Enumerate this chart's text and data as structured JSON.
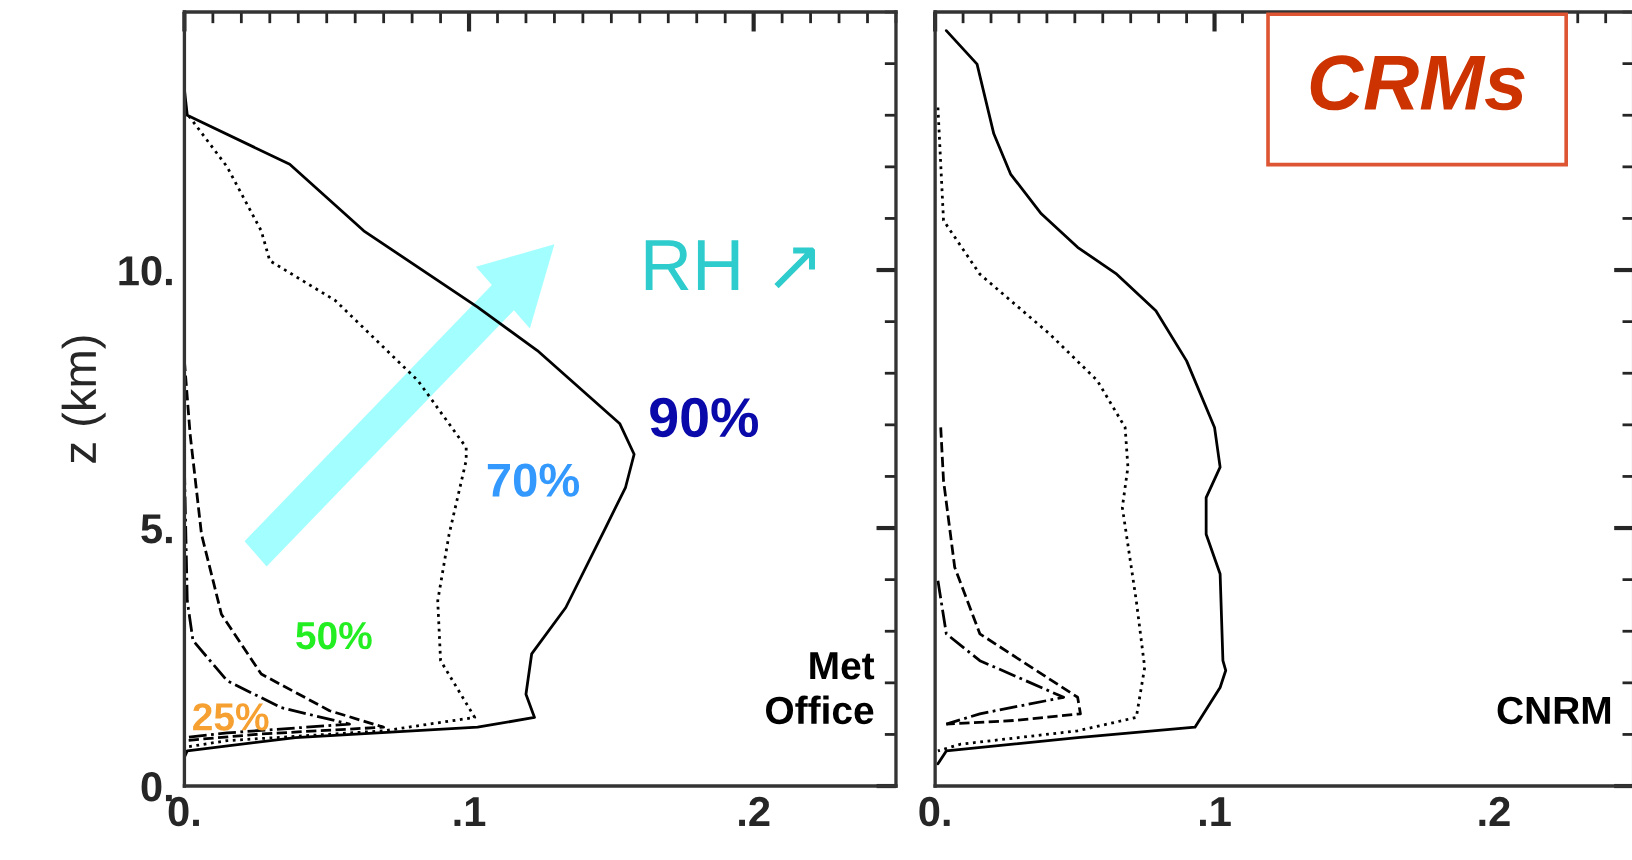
{
  "chart_data": [
    {
      "type": "line",
      "ylabel": "z (km)",
      "xlim": [
        0,
        0.25
      ],
      "ylim": [
        0,
        15
      ],
      "legend": false,
      "grid": false,
      "xticks": [
        {
          "value": 0,
          "label": "0."
        },
        {
          "value": 0.1,
          "label": ".1"
        },
        {
          "value": 0.2,
          "label": ".2"
        }
      ],
      "yticks": [
        {
          "value": 0,
          "label": "0."
        },
        {
          "value": 5,
          "label": "5."
        },
        {
          "value": 10,
          "label": "10."
        }
      ],
      "series": [
        {
          "color": "#000000",
          "line_style": "solid",
          "x": [
            0,
            0.001,
            0.037,
            0.063,
            0.103,
            0.124,
            0.153,
            0.158,
            0.155,
            0.148,
            0.134,
            0.122,
            0.12,
            0.123,
            0.103,
            0.039,
            0.001,
            0
          ],
          "values": [
            13.5,
            13.0,
            12.05,
            10.76,
            9.28,
            8.44,
            7.02,
            6.43,
            5.79,
            5.01,
            3.46,
            2.56,
            1.78,
            1.33,
            1.14,
            0.94,
            0.68,
            0.56
          ]
        },
        {
          "color": "#000000",
          "line_style": "dotted",
          "x": [
            0,
            0.015,
            0.027,
            0.03,
            0.053,
            0.082,
            0.099,
            0.099,
            0.093,
            0.089,
            0.09,
            0.102,
            0.07,
            0.015,
            0
          ],
          "values": [
            13.1,
            12.0,
            10.76,
            10.18,
            9.41,
            7.86,
            6.56,
            6.31,
            4.88,
            3.59,
            2.43,
            1.33,
            1.07,
            0.88,
            0.75
          ]
        },
        {
          "color": "#000000",
          "line_style": "dashed",
          "x": [
            0,
            0.002,
            0.006,
            0.013,
            0.027,
            0.051,
            0.07,
            0.027,
            0
          ],
          "values": [
            8.24,
            6.82,
            4.88,
            3.33,
            2.17,
            1.46,
            1.14,
            1.01,
            0.88
          ]
        },
        {
          "color": "#000000",
          "line_style": "dashdot",
          "x": [
            0,
            0.001,
            0.003,
            0.015,
            0.034,
            0.058,
            0.015,
            0
          ],
          "values": [
            6.18,
            3.59,
            2.82,
            2.04,
            1.52,
            1.2,
            1.03,
            0.94
          ]
        }
      ],
      "annotations": [
        "90%",
        "70%",
        "50%",
        "25%",
        "RH ↗",
        "Met\nOffice"
      ]
    },
    {
      "type": "line",
      "xlim": [
        0,
        0.25
      ],
      "ylim": [
        0,
        15
      ],
      "legend": false,
      "grid": false,
      "tick_labels": "x",
      "xticks": [
        {
          "value": 0,
          "label": "0."
        },
        {
          "value": 0.1,
          "label": ".1"
        },
        {
          "value": 0.2,
          "label": ".2"
        }
      ],
      "yticks": [
        {
          "value": 0,
          "label": null
        },
        {
          "value": 5,
          "label": null
        },
        {
          "value": 10,
          "label": null
        }
      ],
      "series": [
        {
          "color": "#000000",
          "line_style": "solid",
          "x": [
            0.004,
            0.015,
            0.021,
            0.027,
            0.038,
            0.051,
            0.065,
            0.079,
            0.09,
            0.1,
            0.102,
            0.097,
            0.097,
            0.102,
            0.103,
            0.104,
            0.102,
            0.093,
            0.051,
            0.004,
            0.001
          ],
          "values": [
            14.64,
            13.99,
            12.64,
            11.86,
            11.09,
            10.44,
            9.92,
            9.21,
            8.24,
            6.95,
            6.18,
            5.59,
            4.88,
            4.11,
            2.43,
            2.24,
            1.91,
            1.14,
            0.94,
            0.68,
            0.43
          ]
        },
        {
          "color": "#000000",
          "line_style": "dotted",
          "x": [
            0.001,
            0.003,
            0.016,
            0.041,
            0.058,
            0.068,
            0.069,
            0.067,
            0.072,
            0.075,
            0.072,
            0.051,
            0.009,
            0.001
          ],
          "values": [
            13.15,
            10.96,
            9.92,
            8.76,
            7.86,
            6.95,
            6.18,
            5.4,
            3.59,
            2.3,
            1.33,
            1.07,
            0.81,
            0.68
          ]
        },
        {
          "color": "#000000",
          "line_style": "dashed",
          "x": [
            0.002,
            0.003,
            0.007,
            0.016,
            0.051,
            0.052,
            0.028,
            0.004
          ],
          "values": [
            6.95,
            5.92,
            4.24,
            2.95,
            1.72,
            1.4,
            1.27,
            1.2
          ]
        },
        {
          "color": "#000000",
          "line_style": "dashdot",
          "x": [
            0.001,
            0.004,
            0.016,
            0.046,
            0.016,
            0.004
          ],
          "values": [
            3.98,
            2.95,
            2.43,
            1.72,
            1.4,
            1.2
          ]
        }
      ],
      "annotations": [
        "CRMs",
        "CNRM"
      ]
    }
  ]
}
